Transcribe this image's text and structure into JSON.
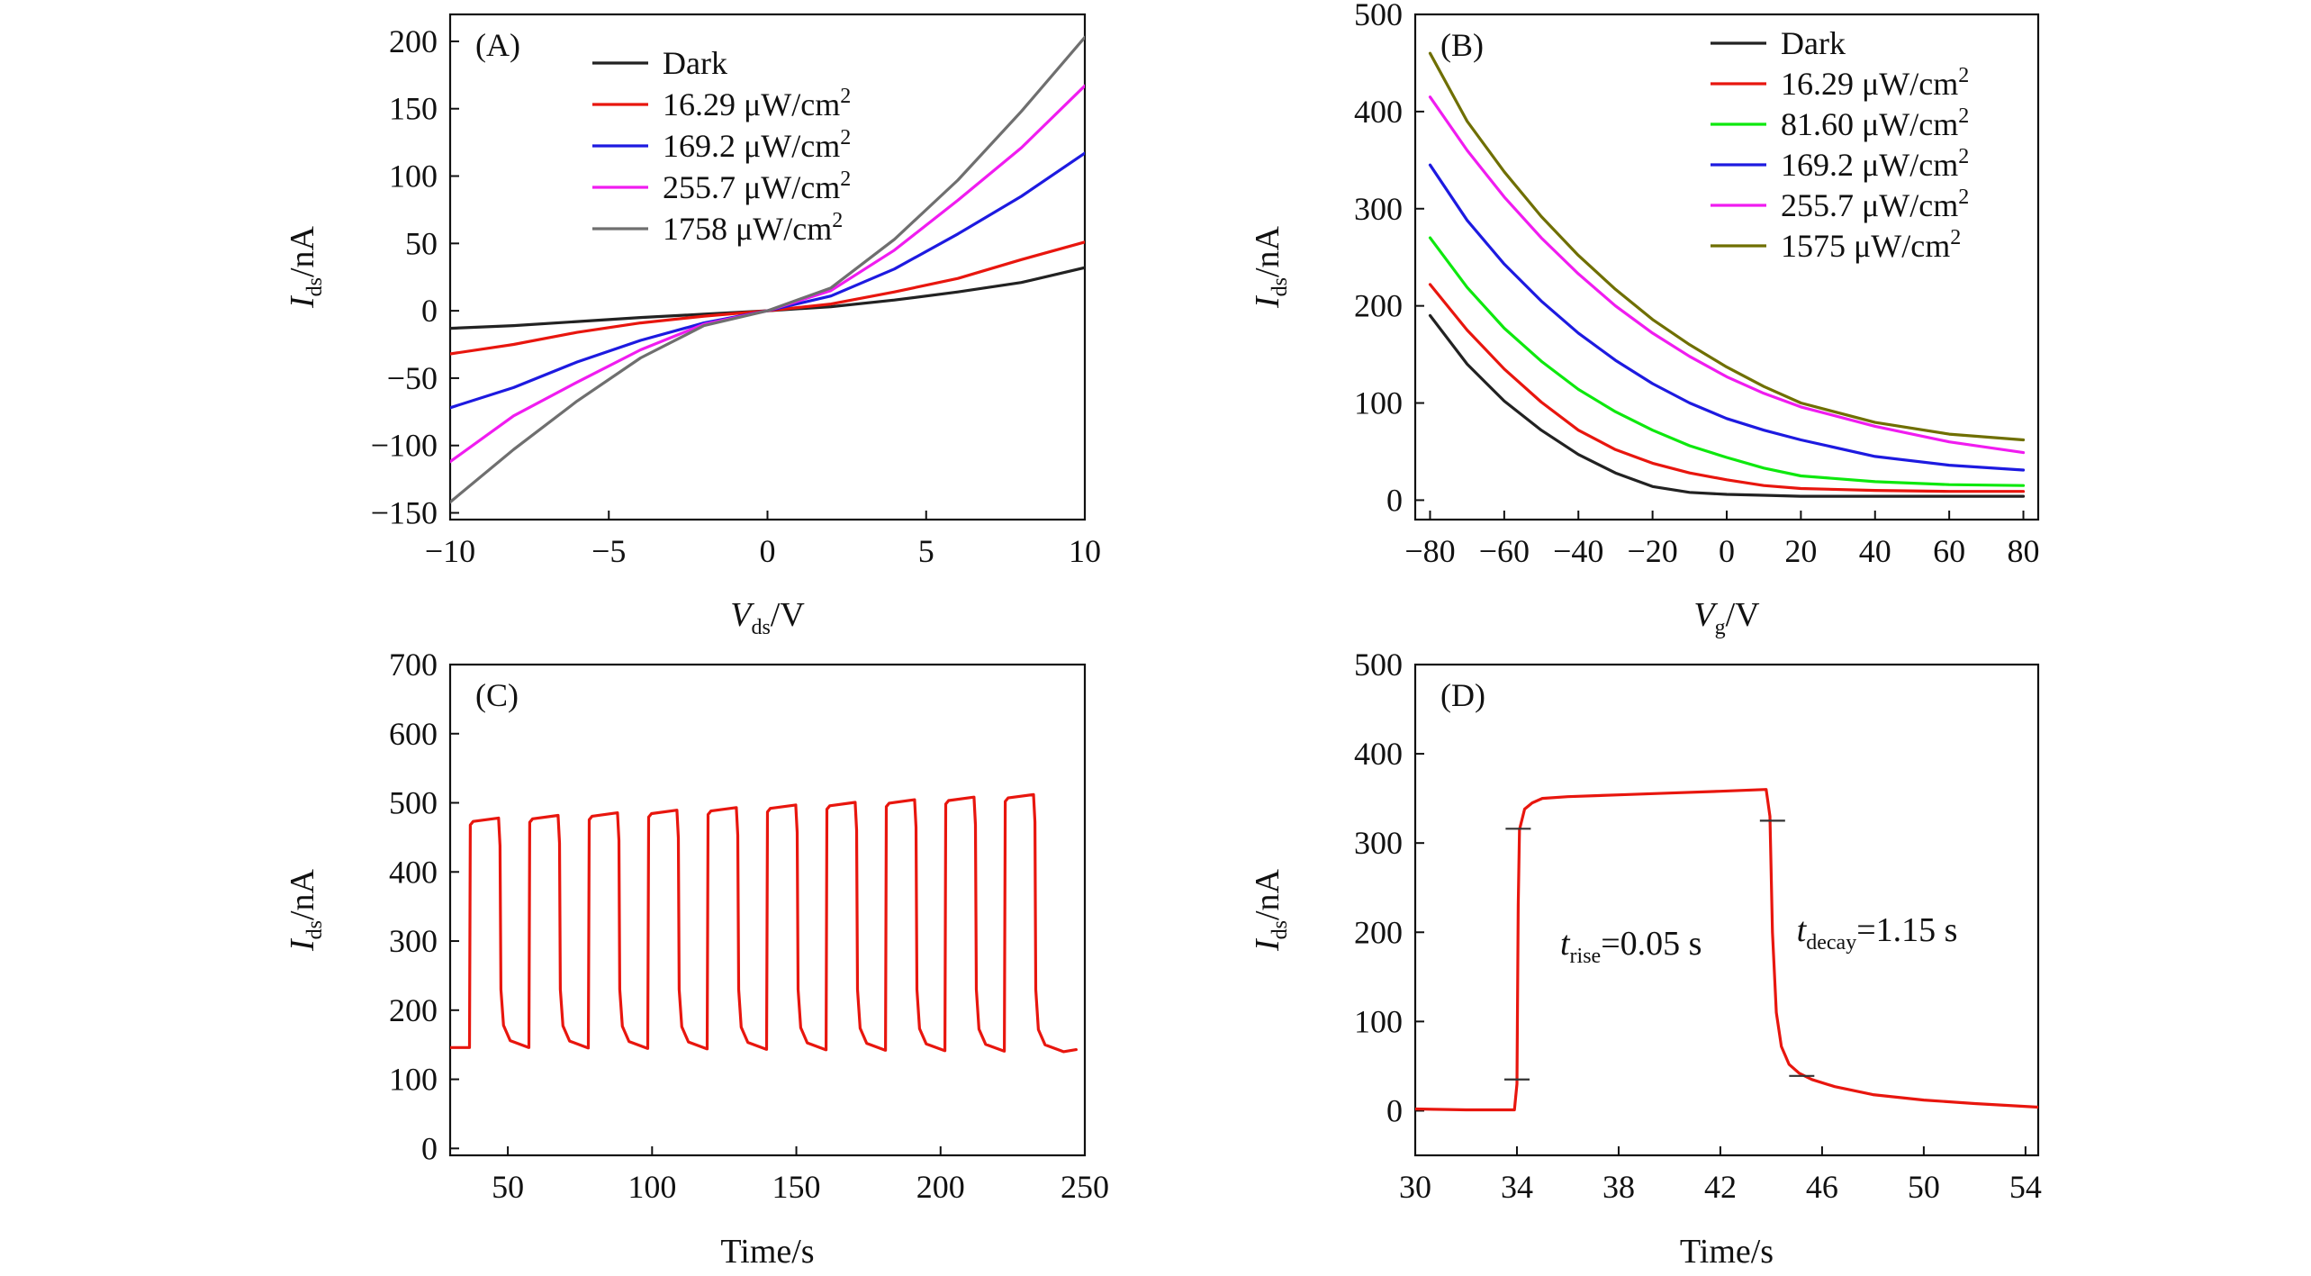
{
  "chart_data": [
    {
      "panel": "(A)",
      "type": "line",
      "xlabel": {
        "main": "V",
        "sub": "ds",
        "unit": "/V"
      },
      "ylabel": {
        "main": "I",
        "sub": "ds",
        "unit": "/nA"
      },
      "xlim": [
        -10,
        10
      ],
      "ylim": [
        -155,
        220
      ],
      "xticks": [
        -10,
        -5,
        0,
        5,
        10
      ],
      "xtick_labels": [
        "−10",
        "−5",
        "0",
        "5",
        "10"
      ],
      "yticks": [
        -150,
        -100,
        -50,
        0,
        50,
        100,
        150,
        200
      ],
      "ytick_labels": [
        "−150",
        "−100",
        "−50",
        "0",
        "50",
        "100",
        "150",
        "200"
      ],
      "legend": {
        "position": "top-right"
      },
      "series": [
        {
          "name": "Dark",
          "label": "Dark",
          "color": "#222222",
          "x": [
            -10,
            -8,
            -6,
            -4,
            -2,
            0,
            2,
            4,
            6,
            8,
            10
          ],
          "y": [
            -13,
            -11,
            -8,
            -5,
            -2.5,
            0,
            3,
            8,
            14,
            21,
            32
          ]
        },
        {
          "name": "16.29 μW/cm²",
          "label": "16.29 μW/cm",
          "sup": "2",
          "color": "#e8160e",
          "x": [
            -10,
            -8,
            -6,
            -4,
            -2,
            0,
            2,
            4,
            6,
            8,
            10
          ],
          "y": [
            -32,
            -25,
            -16,
            -9,
            -4,
            0,
            5,
            14,
            24,
            38,
            51
          ]
        },
        {
          "name": "169.2 μW/cm²",
          "label": "169.2 μW/cm",
          "sup": "2",
          "color": "#1d1ae0",
          "x": [
            -10,
            -8,
            -6,
            -4,
            -2,
            0,
            2,
            4,
            6,
            8,
            10
          ],
          "y": [
            -72,
            -57,
            -38,
            -22,
            -9,
            0,
            11,
            31,
            57,
            85,
            117
          ]
        },
        {
          "name": "255.7 μW/cm²",
          "label": "255.7 μW/cm",
          "sup": "2",
          "color": "#f01cf0",
          "x": [
            -10,
            -8,
            -6,
            -4,
            -2,
            0,
            2,
            4,
            6,
            8,
            10
          ],
          "y": [
            -112,
            -78,
            -53,
            -29,
            -10,
            0,
            15,
            45,
            82,
            121,
            167
          ]
        },
        {
          "name": "1758 μW/cm²",
          "label": "1758 μW/cm",
          "sup": "2",
          "color": "#6f6f6f",
          "x": [
            -10,
            -8,
            -6,
            -4,
            -2,
            0,
            2,
            4,
            6,
            8,
            10
          ],
          "y": [
            -142,
            -103,
            -67,
            -35,
            -11,
            0,
            17,
            53,
            97,
            148,
            203
          ]
        }
      ]
    },
    {
      "panel": "(B)",
      "type": "line",
      "xlabel": {
        "main": "V",
        "sub": "g",
        "unit": "/V"
      },
      "ylabel": {
        "main": "I",
        "sub": "ds",
        "unit": "/nA"
      },
      "xlim": [
        -84,
        84
      ],
      "ylim": [
        -20,
        500
      ],
      "xticks": [
        -80,
        -60,
        -40,
        -20,
        0,
        20,
        40,
        60,
        80
      ],
      "xtick_labels": [
        "−80",
        "−60",
        "−40",
        "−20",
        "0",
        "20",
        "40",
        "60",
        "80"
      ],
      "yticks": [
        0,
        100,
        200,
        300,
        400,
        500
      ],
      "ytick_labels": [
        "0",
        "100",
        "200",
        "300",
        "400",
        "500"
      ],
      "legend": {
        "position": "top-right"
      },
      "series": [
        {
          "name": "Dark",
          "label": "Dark",
          "color": "#222222",
          "x": [
            -80,
            -70,
            -60,
            -50,
            -40,
            -30,
            -20,
            -10,
            0,
            10,
            20,
            40,
            60,
            80
          ],
          "y": [
            190,
            140,
            102,
            72,
            47,
            28,
            14,
            8,
            6,
            5,
            4,
            4,
            4,
            4
          ]
        },
        {
          "name": "16.29 μW/cm²",
          "label": "16.29 μW/cm",
          "sup": "2",
          "color": "#e8160e",
          "x": [
            -80,
            -70,
            -60,
            -50,
            -40,
            -30,
            -20,
            -10,
            0,
            10,
            20,
            40,
            60,
            80
          ],
          "y": [
            222,
            175,
            135,
            101,
            72,
            52,
            38,
            28,
            21,
            15,
            12,
            10,
            9,
            9
          ]
        },
        {
          "name": "81.60 μW/cm²",
          "label": "81.60 μW/cm",
          "sup": "2",
          "color": "#0ee80e",
          "x": [
            -80,
            -70,
            -60,
            -50,
            -40,
            -30,
            -20,
            -10,
            0,
            10,
            20,
            40,
            60,
            80
          ],
          "y": [
            270,
            219,
            177,
            143,
            114,
            91,
            72,
            56,
            44,
            33,
            25,
            19,
            16,
            15
          ]
        },
        {
          "name": "169.2 μW/cm²",
          "label": "169.2 μW/cm",
          "sup": "2",
          "color": "#1d1ae0",
          "x": [
            -80,
            -70,
            -60,
            -50,
            -40,
            -30,
            -20,
            -10,
            0,
            10,
            20,
            40,
            60,
            80
          ],
          "y": [
            345,
            288,
            243,
            205,
            172,
            144,
            120,
            100,
            84,
            72,
            62,
            45,
            36,
            31
          ]
        },
        {
          "name": "255.7 μW/cm²",
          "label": "255.7 μW/cm",
          "sup": "2",
          "color": "#f01cf0",
          "x": [
            -80,
            -70,
            -60,
            -50,
            -40,
            -30,
            -20,
            -10,
            0,
            10,
            20,
            40,
            60,
            80
          ],
          "y": [
            415,
            360,
            312,
            270,
            233,
            200,
            172,
            148,
            127,
            110,
            96,
            76,
            60,
            49
          ]
        },
        {
          "name": "1575 μW/cm²",
          "label": "1575 μW/cm",
          "sup": "2",
          "color": "#6f6f00",
          "x": [
            -80,
            -70,
            -60,
            -50,
            -40,
            -30,
            -20,
            -10,
            0,
            10,
            20,
            40,
            60,
            80
          ],
          "y": [
            460,
            390,
            338,
            292,
            252,
            217,
            186,
            160,
            137,
            117,
            100,
            80,
            68,
            62
          ]
        }
      ]
    },
    {
      "panel": "(C)",
      "type": "line",
      "xlabel": {
        "main": "Time/s"
      },
      "ylabel": {
        "main": "I",
        "sub": "ds",
        "unit": "/nA"
      },
      "xlim": [
        30,
        250
      ],
      "ylim": [
        -10,
        700
      ],
      "xticks": [
        50,
        100,
        150,
        200,
        250
      ],
      "xtick_labels": [
        "50",
        "100",
        "150",
        "200",
        "250"
      ],
      "yticks": [
        0,
        100,
        200,
        300,
        400,
        500,
        600,
        700
      ],
      "ytick_labels": [
        "0",
        "100",
        "200",
        "300",
        "400",
        "500",
        "600",
        "700"
      ],
      "pulses": {
        "count": 10,
        "first_on": 37,
        "period": 20.6,
        "on_duration": 10.3,
        "dark_start": 146,
        "dark_end": 140,
        "on_low": 478,
        "on_high": 512,
        "on_rise": 5,
        "trail_end_x": 247,
        "trail_end_y": 143
      },
      "series": [
        {
          "name": "I_ds",
          "color": "#e8160e"
        }
      ]
    },
    {
      "panel": "(D)",
      "type": "line",
      "xlabel": {
        "main": "Time/s"
      },
      "ylabel": {
        "main": "I",
        "sub": "ds",
        "unit": "/nA"
      },
      "xlim": [
        30,
        54.5
      ],
      "ylim": [
        -50,
        500
      ],
      "xticks": [
        30,
        34,
        38,
        42,
        46,
        50,
        54
      ],
      "xtick_labels": [
        "30",
        "34",
        "38",
        "42",
        "46",
        "50",
        "54"
      ],
      "yticks": [
        0,
        100,
        200,
        300,
        400,
        500
      ],
      "ytick_labels": [
        "0",
        "100",
        "200",
        "300",
        "400",
        "500"
      ],
      "series": [
        {
          "name": "I_ds",
          "color": "#e8160e",
          "x": [
            30,
            32,
            33.9,
            34.0,
            34.05,
            34.1,
            34.3,
            34.6,
            35,
            36,
            38,
            40,
            42,
            43.8,
            43.95,
            44.05,
            44.2,
            44.4,
            44.7,
            45.1,
            45.6,
            46.5,
            48,
            50,
            52,
            54.5
          ],
          "y": [
            2,
            1,
            1,
            30,
            230,
            315,
            338,
            345,
            350,
            352,
            354,
            356,
            358,
            360,
            330,
            200,
            110,
            72,
            52,
            42,
            35,
            27,
            18,
            12,
            8,
            4
          ]
        }
      ],
      "markers": [
        {
          "x": 34.0,
          "y": 35
        },
        {
          "x": 34.05,
          "y": 316
        },
        {
          "x": 44.05,
          "y": 325
        },
        {
          "x": 45.2,
          "y": 39
        }
      ],
      "annotations": {
        "rise": {
          "main": "t",
          "sub": "rise",
          "rest": "=0.05 s",
          "x": 35.7,
          "y": 175
        },
        "decay": {
          "main": "t",
          "sub": "decay",
          "rest": "=1.15 s",
          "x": 45.0,
          "y": 190
        }
      }
    }
  ]
}
